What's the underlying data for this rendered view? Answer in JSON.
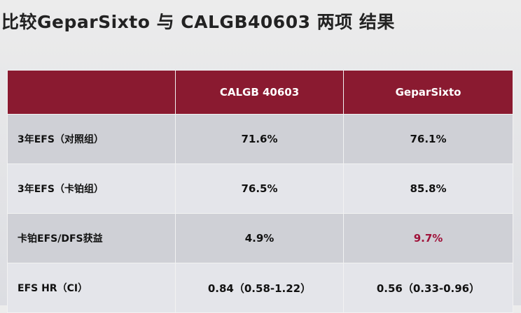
{
  "title": "比较GeparSixto 与 CALGB40603 两项 结果",
  "table": {
    "header": [
      "CALGB 40603",
      "GeparSixto"
    ],
    "rows": [
      [
        "3年EFS（对照组）",
        "71.6%",
        "76.1%"
      ],
      [
        "3年EFS（卡铂组）",
        "76.5%",
        "85.8%"
      ],
      [
        "卡铂EFS/DFS获益",
        "4.9%",
        "9.7%"
      ],
      [
        "EFS HR（CI）",
        "0.84（0.58-1.22）",
        "0.56（0.33-0.96）"
      ]
    ]
  }
}
